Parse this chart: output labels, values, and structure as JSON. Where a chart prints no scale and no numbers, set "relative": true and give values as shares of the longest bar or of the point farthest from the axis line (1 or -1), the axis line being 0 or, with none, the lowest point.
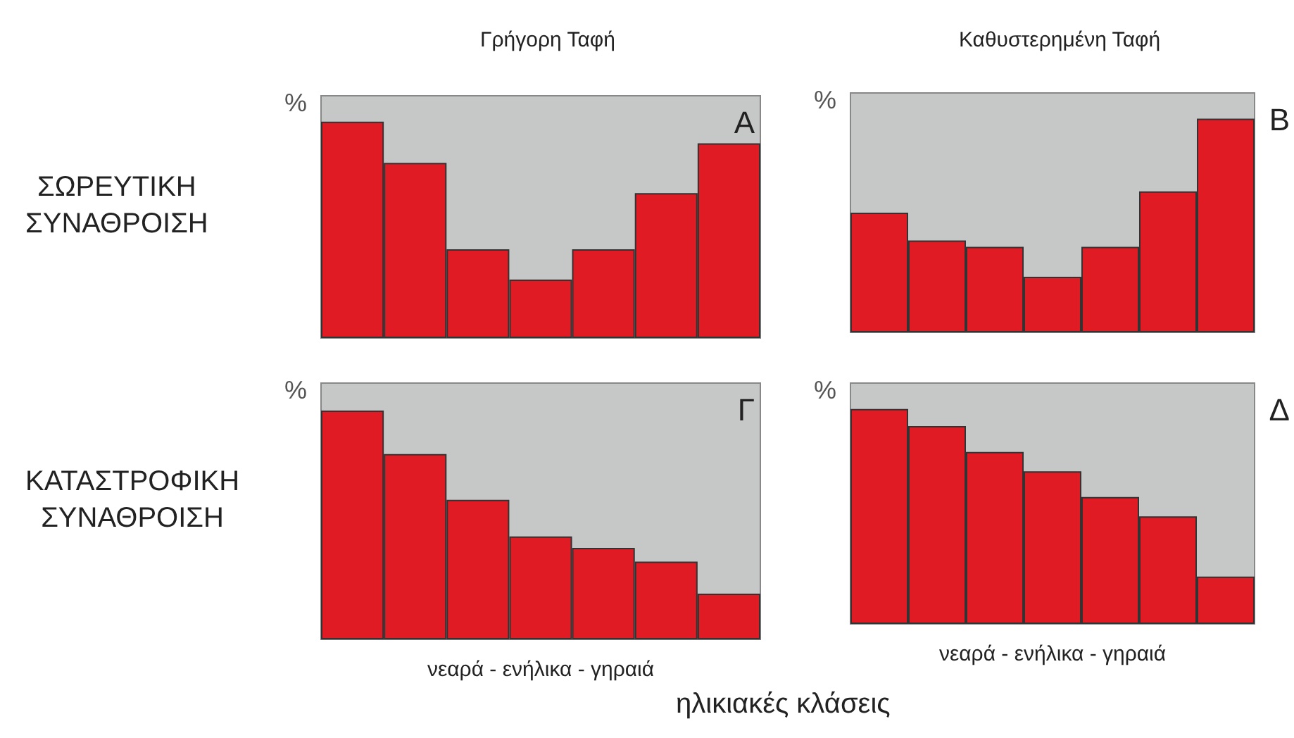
{
  "chart_data": [
    {
      "type": "bar",
      "title": "Γρήγορη Ταφή",
      "ylabel": "%",
      "relative": true,
      "categories": [
        null,
        null,
        null,
        null,
        null,
        null,
        null
      ],
      "color": "#e01b24",
      "values": [
        1,
        0.81,
        0.41,
        0.27,
        0.41,
        0.67,
        0.9
      ],
      "annotations": [
        "A",
        "ΣΩΡΕΥΤΙΚΗ\nΣΥΝΑΘΡΟΙΣΗ"
      ]
    },
    {
      "type": "bar",
      "title": "Καθυστερημένη Ταφή",
      "ylabel": "%",
      "relative": true,
      "categories": [
        null,
        null,
        null,
        null,
        null,
        null,
        null
      ],
      "color": "#e01b24",
      "values": [
        0.56,
        0.43,
        0.4,
        0.26,
        0.4,
        0.66,
        1
      ],
      "annotations": [
        "B"
      ]
    },
    {
      "type": "bar",
      "xlabel": "νεαρά - ενήλικα - γηραιά",
      "ylabel": "%",
      "relative": true,
      "categories": [
        null,
        null,
        null,
        null,
        null,
        null,
        null
      ],
      "color": "#e01b24",
      "values": [
        1,
        0.81,
        0.61,
        0.45,
        0.4,
        0.34,
        0.2
      ],
      "annotations": [
        "Γ",
        "ΚΑΤΑΣΤΡΟΦΙΚΗ\nΣΥΝΑΘΡΟΙΣΗ",
        "ηλικιακές κλάσεις"
      ]
    },
    {
      "type": "bar",
      "xlabel": "νεαρά - ενήλικα - γηραιά",
      "ylabel": "%",
      "relative": true,
      "categories": [
        null,
        null,
        null,
        null,
        null,
        null,
        null
      ],
      "color": "#e01b24",
      "values": [
        1,
        0.92,
        0.8,
        0.71,
        0.59,
        0.5,
        0.22
      ],
      "annotations": [
        "Δ"
      ]
    }
  ]
}
